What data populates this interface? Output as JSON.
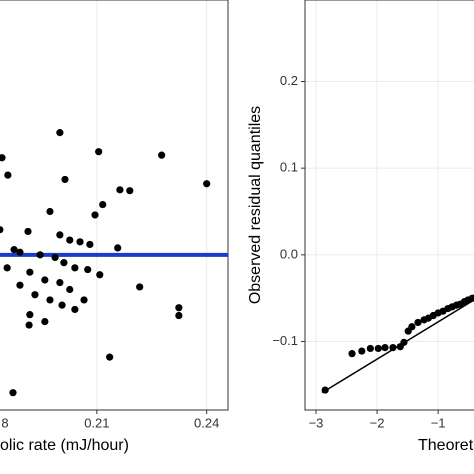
{
  "chart_data": [
    {
      "type": "scatter",
      "x_label": "olic rate (mJ/hour)",
      "xlim": [
        0.18,
        0.245
      ],
      "ylim": [
        -0.179,
        0.294
      ],
      "xticks": [
        {
          "value": 0.18,
          "label": "8"
        },
        0.21,
        0.24
      ],
      "grid": true,
      "color": "#000000",
      "x": [
        0.1999,
        0.2105,
        0.2277,
        0.1841,
        0.24,
        0.1857,
        0.2013,
        0.2163,
        0.219,
        0.2116,
        0.2095,
        0.1972,
        0.1835,
        0.1912,
        0.1999,
        0.2026,
        0.2054,
        0.2081,
        0.2157,
        0.1874,
        0.189,
        0.1945,
        0.1986,
        0.201,
        0.204,
        0.2075,
        0.2108,
        0.1855,
        0.1917,
        0.1958,
        0.1999,
        0.2026,
        0.2065,
        0.2217,
        0.189,
        0.1931,
        0.1972,
        0.2005,
        0.204,
        0.1917,
        0.1958,
        0.1915,
        0.2324,
        0.2324,
        0.2135,
        0.1871
      ],
      "values": [
        0.141,
        0.119,
        0.115,
        0.112,
        0.082,
        0.092,
        0.087,
        0.075,
        0.074,
        0.058,
        0.046,
        0.05,
        0.029,
        0.027,
        0.023,
        0.017,
        0.015,
        0.012,
        0.008,
        0.006,
        0.003,
        0,
        -0.003,
        -0.009,
        -0.015,
        -0.017,
        -0.023,
        -0.015,
        -0.02,
        -0.029,
        -0.032,
        -0.04,
        -0.052,
        -0.037,
        -0.035,
        -0.046,
        -0.052,
        -0.058,
        -0.063,
        -0.069,
        -0.077,
        -0.081,
        -0.061,
        -0.07,
        -0.118,
        -0.159
      ],
      "hline": {
        "value": 0,
        "color": "#1a3ccc"
      }
    },
    {
      "type": "scatter",
      "x_label": "Theoret",
      "y_label": "Observed residual quantiles",
      "xlim": [
        -3.18,
        -0.2
      ],
      "ylim": [
        -0.179,
        0.294
      ],
      "xticks": [
        {
          "value": -3,
          "label": "−3"
        },
        {
          "value": -2,
          "label": "−2"
        },
        {
          "value": -1,
          "label": "−1"
        }
      ],
      "yticks": [
        {
          "value": -0.1,
          "label": "−0.1"
        },
        {
          "value": 0,
          "label": "0.0"
        },
        0.1,
        0.2
      ],
      "grid": true,
      "color": "#000000",
      "x": [
        -2.85,
        -2.41,
        -2.25,
        -2.11,
        -1.98,
        -1.87,
        -1.74,
        -1.62,
        -1.56,
        -1.49,
        -1.43,
        -1.33,
        -1.23,
        -1.16,
        -1.08,
        -1.0,
        -0.92,
        -0.84,
        -0.77,
        -0.7,
        -0.64,
        -0.57,
        -0.51,
        -0.44
      ],
      "values": [
        -0.156,
        -0.114,
        -0.111,
        -0.108,
        -0.108,
        -0.107,
        -0.107,
        -0.106,
        -0.101,
        -0.088,
        -0.083,
        -0.078,
        -0.075,
        -0.073,
        -0.07,
        -0.067,
        -0.065,
        -0.062,
        -0.06,
        -0.058,
        -0.057,
        -0.054,
        -0.052,
        -0.05
      ],
      "reference_line": {
        "x": [
          -2.9,
          -0.41
        ],
        "values": [
          -0.159,
          -0.052
        ],
        "color": "#000000"
      }
    }
  ]
}
